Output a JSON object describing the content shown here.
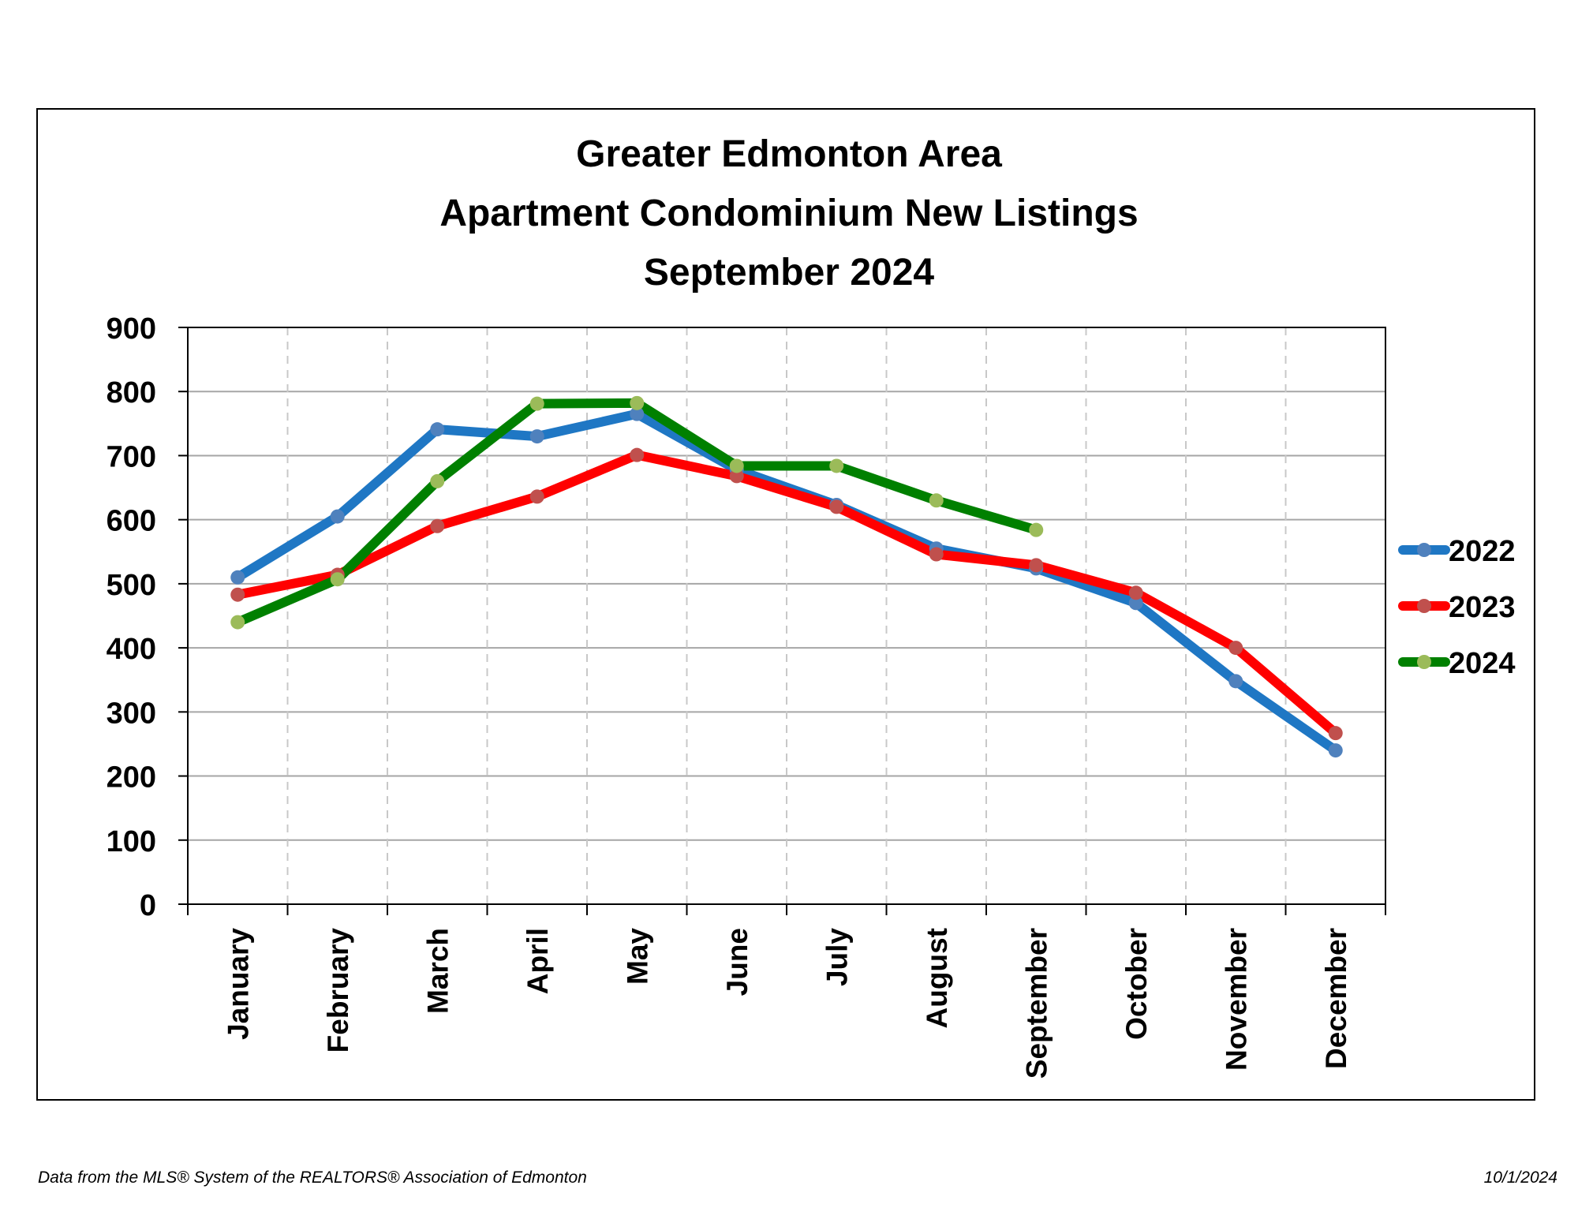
{
  "chart_data": {
    "type": "line",
    "title": [
      "Greater Edmonton Area",
      "Apartment Condominium New Listings",
      "September 2024"
    ],
    "categories": [
      "January",
      "February",
      "March",
      "April",
      "May",
      "June",
      "July",
      "August",
      "September",
      "October",
      "November",
      "December"
    ],
    "ylim": [
      0,
      900
    ],
    "yticks": [
      0,
      100,
      200,
      300,
      400,
      500,
      600,
      700,
      800,
      900
    ],
    "grid": "horizontal solid, vertical dashed",
    "legend_position": "right",
    "series": [
      {
        "name": "2022",
        "color": "#1f77c4",
        "marker_color": "#4f81bd",
        "values": [
          510,
          605,
          741,
          730,
          765,
          678,
          623,
          555,
          524,
          470,
          348,
          240
        ]
      },
      {
        "name": "2023",
        "color": "#ff0000",
        "marker_color": "#c0504d",
        "values": [
          483,
          514,
          590,
          636,
          701,
          668,
          620,
          546,
          529,
          486,
          400,
          267
        ]
      },
      {
        "name": "2024",
        "color": "#008000",
        "marker_color": "#9bbb59",
        "values": [
          440,
          507,
          660,
          781,
          782,
          684,
          684,
          630,
          584,
          null,
          null,
          null
        ]
      }
    ]
  },
  "footer": {
    "source": "Data from the MLS® System of the REALTORS® Association of Edmonton",
    "date": "10/1/2024"
  }
}
